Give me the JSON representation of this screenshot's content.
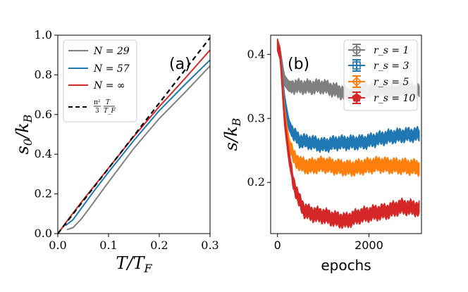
{
  "chart_data": [
    {
      "type": "line",
      "panel_label": "(a)",
      "xlabel": "T/T_F",
      "ylabel": "s_0/k_B",
      "xlim": [
        0,
        0.3
      ],
      "ylim": [
        0,
        1.0
      ],
      "xticks": [
        0.0,
        0.1,
        0.2,
        0.3
      ],
      "xtick_labels": [
        "0.0",
        "0.1",
        "0.2",
        "0.3"
      ],
      "yticks": [
        0.0,
        0.2,
        0.4,
        0.6,
        0.8,
        1.0
      ],
      "ytick_labels": [
        "0.0",
        "0.2",
        "0.4",
        "0.6",
        "0.8",
        "1.0"
      ],
      "legend_position": "top-left",
      "series": [
        {
          "name": "N = 29",
          "color": "#808080",
          "dash": "solid",
          "x": [
            0.018,
            0.03,
            0.045,
            0.06,
            0.08,
            0.1,
            0.15,
            0.2,
            0.25,
            0.3
          ],
          "y": [
            0.02,
            0.03,
            0.07,
            0.12,
            0.19,
            0.26,
            0.43,
            0.58,
            0.71,
            0.845
          ]
        },
        {
          "name": "N = 57",
          "color": "#1f77b4",
          "dash": "solid",
          "x": [
            0.015,
            0.03,
            0.05,
            0.07,
            0.1,
            0.15,
            0.2,
            0.25,
            0.3
          ],
          "y": [
            0.04,
            0.07,
            0.14,
            0.21,
            0.31,
            0.47,
            0.62,
            0.75,
            0.875
          ]
        },
        {
          "name": "N = ∞",
          "color": "#d62728",
          "dash": "solid",
          "x": [
            0.005,
            0.02,
            0.05,
            0.1,
            0.15,
            0.2,
            0.25,
            0.3
          ],
          "y": [
            0.016,
            0.07,
            0.17,
            0.33,
            0.49,
            0.64,
            0.78,
            0.925
          ]
        },
        {
          "name": "π²/3 · T/T_F",
          "color": "#000000",
          "dash": "dashed",
          "x": [
            0.0,
            0.3
          ],
          "y": [
            0.0,
            0.987
          ]
        }
      ],
      "legend_labels": {
        "n29": "N = 29",
        "n57": "N = 57",
        "ninf": "N = ∞",
        "formula_num": "π²",
        "formula_den": "3",
        "formula_t": "T",
        "formula_tf": "T_F"
      }
    },
    {
      "type": "line",
      "panel_label": "(b)",
      "xlabel": "epochs",
      "ylabel": "s/k_B",
      "xlim": [
        -150,
        3150
      ],
      "ylim": [
        0.12,
        0.43
      ],
      "xticks": [
        0,
        2000
      ],
      "xtick_labels": [
        "0",
        "2000"
      ],
      "yticks": [
        0.2,
        0.3,
        0.4
      ],
      "ytick_labels": [
        "0.2",
        "0.3",
        "0.4"
      ],
      "legend_position": "top-right",
      "series": [
        {
          "name": "r_s = 1",
          "color": "#7f7f7f",
          "marker": "circle",
          "band_halfwidth": 0.008,
          "x": [
            0,
            60,
            150,
            250,
            400,
            700,
            1000,
            1300,
            1600,
            1900,
            2200,
            2500,
            2800,
            3100
          ],
          "y": [
            0.415,
            0.4,
            0.36,
            0.35,
            0.35,
            0.349,
            0.35,
            0.343,
            0.337,
            0.344,
            0.345,
            0.341,
            0.346,
            0.343
          ]
        },
        {
          "name": "r_s = 3",
          "color": "#1f77b4",
          "marker": "square",
          "band_halfwidth": 0.008,
          "x": [
            0,
            60,
            150,
            250,
            350,
            500,
            700,
            1000,
            1300,
            1600,
            1900,
            2200,
            2500,
            2800,
            3100
          ],
          "y": [
            0.415,
            0.4,
            0.33,
            0.29,
            0.275,
            0.265,
            0.263,
            0.258,
            0.262,
            0.262,
            0.263,
            0.268,
            0.272,
            0.274,
            0.275
          ]
        },
        {
          "name": "r_s = 5",
          "color": "#ff7f0e",
          "marker": "diamond",
          "band_halfwidth": 0.009,
          "x": [
            0,
            60,
            150,
            250,
            350,
            500,
            700,
            1000,
            1300,
            1600,
            1900,
            2200,
            2500,
            2800,
            3100
          ],
          "y": [
            0.415,
            0.4,
            0.31,
            0.26,
            0.24,
            0.228,
            0.225,
            0.228,
            0.224,
            0.222,
            0.225,
            0.228,
            0.226,
            0.225,
            0.223
          ]
        },
        {
          "name": "r_s = 10",
          "color": "#d62728",
          "marker": "pentagon",
          "band_halfwidth": 0.009,
          "x": [
            0,
            60,
            150,
            250,
            350,
            450,
            600,
            800,
            1000,
            1300,
            1500,
            1800,
            2100,
            2400,
            2700,
            3000,
            3100
          ],
          "y": [
            0.415,
            0.4,
            0.3,
            0.24,
            0.2,
            0.175,
            0.155,
            0.15,
            0.148,
            0.142,
            0.14,
            0.148,
            0.152,
            0.155,
            0.162,
            0.16,
            0.158
          ]
        }
      ],
      "legend_labels": {
        "rs1": "r_s = 1",
        "rs3": "r_s = 3",
        "rs5": "r_s = 5",
        "rs10": "r_s = 10"
      }
    }
  ]
}
